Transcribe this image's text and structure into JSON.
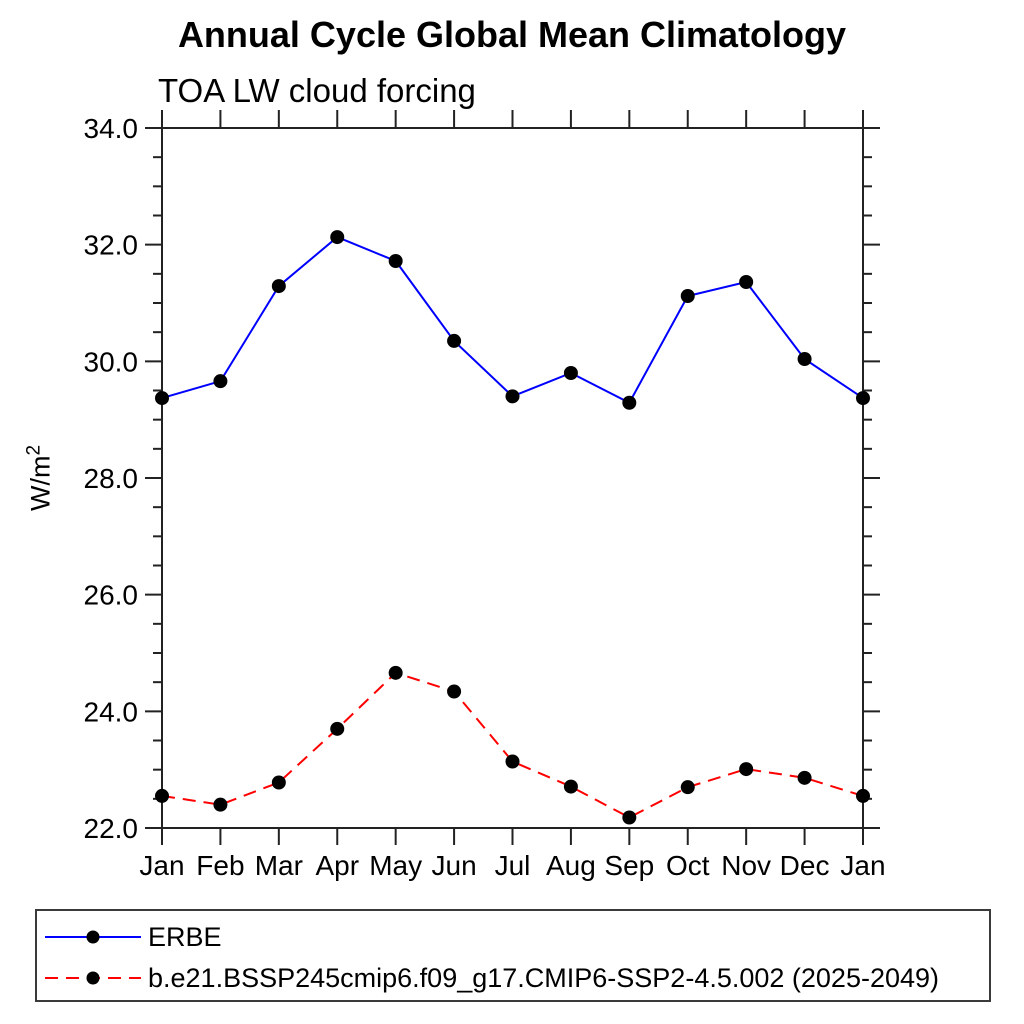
{
  "title": "Annual Cycle Global Mean Climatology",
  "subtitle": "TOA LW cloud forcing",
  "y_axis": {
    "unit_base": "W/m",
    "unit_exp": "2"
  },
  "colors": {
    "erbe_line": "#0000ff",
    "model_line": "#ff0000",
    "marker": "#000000",
    "axis": "#222222"
  },
  "legend": {
    "items": [
      {
        "label": "ERBE",
        "color": "#0000ff",
        "style": "solid",
        "marker": "filled-circle"
      },
      {
        "label": "b.e21.BSSP245cmip6.f09_g17.CMIP6-SSP2-4.5.002 (2025-2049)",
        "color": "#ff0000",
        "style": "dashed",
        "marker": "filled-circle"
      }
    ]
  },
  "chart_data": {
    "type": "line",
    "title": "Annual Cycle Global Mean Climatology",
    "subtitle": "TOA LW cloud forcing",
    "xlabel": "",
    "ylabel": "W/m2",
    "categories": [
      "Jan",
      "Feb",
      "Mar",
      "Apr",
      "May",
      "Jun",
      "Jul",
      "Aug",
      "Sep",
      "Oct",
      "Nov",
      "Dec",
      "Jan"
    ],
    "series": [
      {
        "name": "ERBE",
        "color": "#0000ff",
        "line_style": "solid",
        "marker": "filled-circle",
        "values": [
          29.37,
          29.66,
          31.29,
          32.13,
          31.72,
          30.35,
          29.4,
          29.8,
          29.29,
          31.12,
          31.36,
          30.04,
          29.37
        ]
      },
      {
        "name": "b.e21.BSSP245cmip6.f09_g17.CMIP6-SSP2-4.5.002 (2025-2049)",
        "color": "#ff0000",
        "line_style": "dashed",
        "marker": "filled-circle",
        "values": [
          22.55,
          22.4,
          22.78,
          23.7,
          24.66,
          24.34,
          23.14,
          22.71,
          22.18,
          22.7,
          23.01,
          22.86,
          22.55
        ]
      }
    ],
    "ylim": [
      22.0,
      34.0
    ],
    "y_major_step": 2.0,
    "y_minor_step": 0.5,
    "y_tick_labels": [
      "22.0",
      "24.0",
      "26.0",
      "28.0",
      "30.0",
      "32.0",
      "34.0"
    ],
    "grid": false,
    "legend_position": "bottom-box"
  }
}
